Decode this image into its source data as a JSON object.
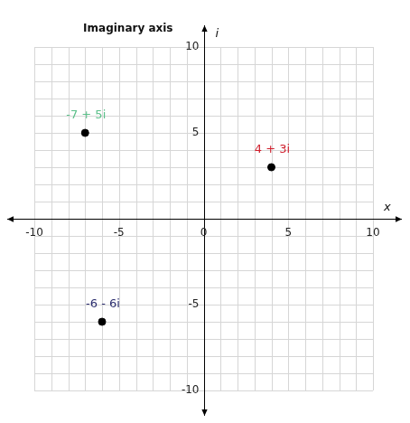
{
  "chart_data": {
    "type": "scatter",
    "annotations": [
      "Imaginary axis"
    ],
    "xlabel": "x",
    "ylabel": "i",
    "x": [
      -7,
      4,
      -6
    ],
    "values": [
      5,
      3,
      -6
    ],
    "data_labels": true,
    "value_labels": [
      "-7 + 5i",
      "4 + 3i",
      "-6 - 6i"
    ],
    "color": "#000000",
    "colors": [
      "#5cc08a",
      "#d0202e",
      "#2b2d6e"
    ],
    "xlim": [
      -10,
      10
    ],
    "xticks": [
      -10,
      -5,
      0,
      5,
      10
    ],
    "ylim": [
      -10,
      10
    ],
    "yticks": [
      -10,
      -5,
      0,
      5,
      10
    ],
    "grid": true
  }
}
